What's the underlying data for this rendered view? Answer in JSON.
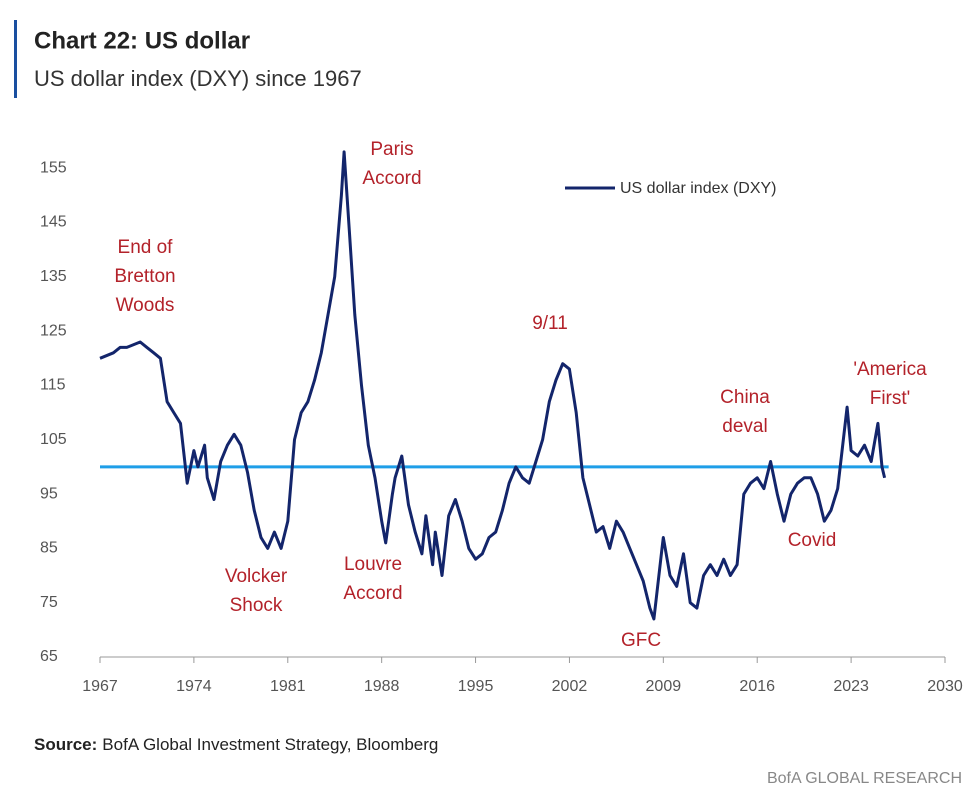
{
  "chart_data": {
    "type": "line",
    "title": "Chart 22: US dollar",
    "subtitle": "US dollar index (DXY) since 1967",
    "source_label": "Source:",
    "source": "BofA Global Investment Strategy, Bloomberg",
    "footer": "BofA GLOBAL RESEARCH",
    "legend": "top-right",
    "xlim": [
      1967,
      2030
    ],
    "xticks": [
      1967,
      1974,
      1981,
      1988,
      1995,
      2002,
      2009,
      2016,
      2023,
      2030
    ],
    "ylim": [
      65,
      160
    ],
    "yticks": [
      65,
      75,
      85,
      95,
      105,
      115,
      125,
      135,
      145,
      155
    ],
    "reference_line": {
      "value": 100,
      "color": "#1e9ee8"
    },
    "x": [
      1967,
      1968,
      1968.5,
      1969,
      1970,
      1970.5,
      1971,
      1971.5,
      1972,
      1972.5,
      1973,
      1973.5,
      1974,
      1974.3,
      1974.8,
      1975,
      1975.5,
      1976,
      1976.5,
      1977,
      1977.5,
      1978,
      1978.5,
      1979,
      1979.5,
      1980,
      1980.5,
      1981,
      1981.5,
      1982,
      1982.5,
      1983,
      1983.5,
      1984,
      1984.5,
      1985,
      1985.2,
      1985.6,
      1986,
      1986.5,
      1987,
      1987.5,
      1988,
      1988.3,
      1988.8,
      1989,
      1989.5,
      1990,
      1990.5,
      1991,
      1991.3,
      1991.8,
      1992,
      1992.5,
      1993,
      1993.5,
      1994,
      1994.5,
      1995,
      1995.5,
      1996,
      1996.5,
      1997,
      1997.5,
      1998,
      1998.5,
      1999,
      1999.5,
      2000,
      2000.5,
      2001,
      2001.5,
      2002,
      2002.5,
      2003,
      2003.5,
      2004,
      2004.5,
      2005,
      2005.5,
      2006,
      2006.5,
      2007,
      2007.5,
      2008,
      2008.3,
      2008.9,
      2009,
      2009.5,
      2010,
      2010.5,
      2011,
      2011.5,
      2012,
      2012.5,
      2013,
      2013.5,
      2014,
      2014.5,
      2015,
      2015.5,
      2016,
      2016.5,
      2017,
      2017.5,
      2018,
      2018.5,
      2019,
      2019.5,
      2020,
      2020.5,
      2021,
      2021.5,
      2022,
      2022.7,
      2023,
      2023.5,
      2024,
      2024.5,
      2025,
      2025.3,
      2025.5
    ],
    "series": [
      {
        "name": "US dollar index (DXY)",
        "color": "#13256b",
        "values": [
          120,
          121,
          122,
          122,
          123,
          122,
          121,
          120,
          112,
          110,
          108,
          97,
          103,
          100,
          104,
          98,
          94,
          101,
          104,
          106,
          104,
          99,
          92,
          87,
          85,
          88,
          85,
          90,
          105,
          110,
          112,
          116,
          121,
          128,
          135,
          150,
          158,
          143,
          128,
          115,
          104,
          98,
          90,
          86,
          95,
          98,
          102,
          93,
          88,
          84,
          91,
          82,
          88,
          80,
          91,
          94,
          90,
          85,
          83,
          84,
          87,
          88,
          92,
          97,
          100,
          98,
          97,
          101,
          105,
          112,
          116,
          119,
          118,
          110,
          98,
          93,
          88,
          89,
          85,
          90,
          88,
          85,
          82,
          79,
          74,
          72,
          85,
          87,
          80,
          78,
          84,
          75,
          74,
          80,
          82,
          80,
          83,
          80,
          82,
          95,
          97,
          98,
          96,
          101,
          95,
          90,
          95,
          97,
          98,
          98,
          95,
          90,
          92,
          96,
          111,
          103,
          102,
          104,
          101,
          108,
          100,
          98
        ]
      }
    ],
    "annotations": [
      {
        "lines": [
          "End of",
          "Bretton",
          "Woods"
        ]
      },
      {
        "lines": [
          "Paris",
          "Accord"
        ]
      },
      {
        "lines": [
          "Volcker",
          "Shock"
        ]
      },
      {
        "lines": [
          "Louvre",
          "Accord"
        ]
      },
      {
        "lines": [
          "9/11"
        ]
      },
      {
        "lines": [
          "GFC"
        ]
      },
      {
        "lines": [
          "China",
          "deval"
        ]
      },
      {
        "lines": [
          "Covid"
        ]
      },
      {
        "lines": [
          "'America",
          "First'"
        ]
      }
    ]
  }
}
